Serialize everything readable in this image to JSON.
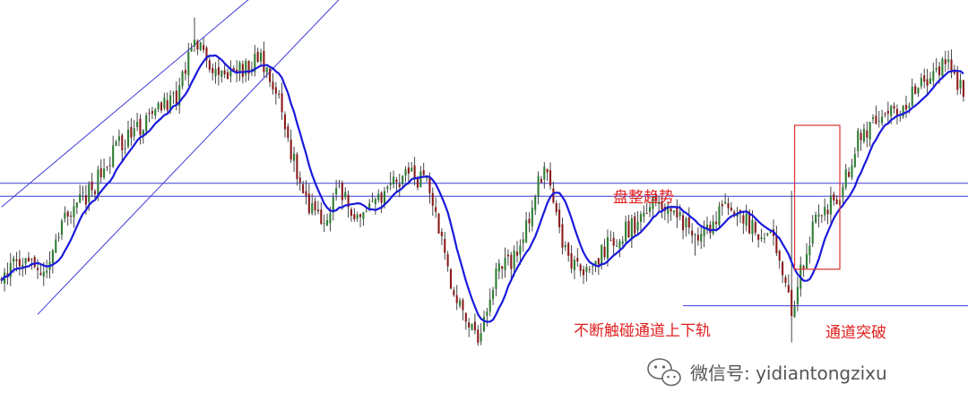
{
  "colors": {
    "bull": "#2e7d32",
    "bear": "#8b1a1a",
    "wick": "#333333",
    "ma": "#1a1adb",
    "channel": "#3a3ad8",
    "annotation": "#e02020",
    "breakout_box": "#e03030",
    "watermark": "#555555"
  },
  "annotations": {
    "consolidation": "盘整趋势",
    "touch_rails": "不断触碰通道上下轨",
    "breakout": "通道突破"
  },
  "watermark": {
    "icon": "wechat-icon",
    "text": "微信号: yidiantongzixu"
  },
  "chart_data": {
    "type": "candlestick",
    "title": "",
    "xlabel": "",
    "ylabel": "",
    "grid": false,
    "legend": "none",
    "ylim": [
      0,
      100
    ],
    "price_anchors_close": [
      [
        0,
        40
      ],
      [
        8,
        44
      ],
      [
        14,
        40
      ],
      [
        22,
        55
      ],
      [
        30,
        60
      ],
      [
        38,
        70
      ],
      [
        48,
        76
      ],
      [
        58,
        82
      ],
      [
        64,
        96
      ],
      [
        70,
        86
      ],
      [
        78,
        88
      ],
      [
        86,
        90
      ],
      [
        92,
        80
      ],
      [
        100,
        58
      ],
      [
        106,
        52
      ],
      [
        112,
        60
      ],
      [
        118,
        52
      ],
      [
        126,
        58
      ],
      [
        134,
        64
      ],
      [
        142,
        61
      ],
      [
        150,
        36
      ],
      [
        158,
        26
      ],
      [
        164,
        40
      ],
      [
        172,
        46
      ],
      [
        180,
        66
      ],
      [
        186,
        46
      ],
      [
        194,
        40
      ],
      [
        202,
        48
      ],
      [
        210,
        52
      ],
      [
        218,
        58
      ],
      [
        226,
        52
      ],
      [
        232,
        48
      ],
      [
        240,
        56
      ],
      [
        248,
        52
      ],
      [
        256,
        48
      ],
      [
        262,
        32
      ],
      [
        270,
        55
      ],
      [
        278,
        58
      ],
      [
        284,
        72
      ],
      [
        290,
        76
      ],
      [
        300,
        80
      ],
      [
        305,
        85
      ],
      [
        313,
        90
      ],
      [
        320,
        82
      ]
    ],
    "candle_count": 320,
    "moving_average": {
      "name": "",
      "period": 10
    },
    "channel_lines": [
      {
        "from": [
          0,
          56
        ],
        "to": [
          112,
          122
        ]
      },
      {
        "from": [
          12,
          31
        ],
        "to": [
          147,
          130
        ]
      }
    ],
    "horizontal_lines": [
      58.5,
      61.5,
      33
    ],
    "breakout_box": {
      "x_from": 263,
      "x_to": 278,
      "y_from": 41.5,
      "y_to": 75
    }
  }
}
